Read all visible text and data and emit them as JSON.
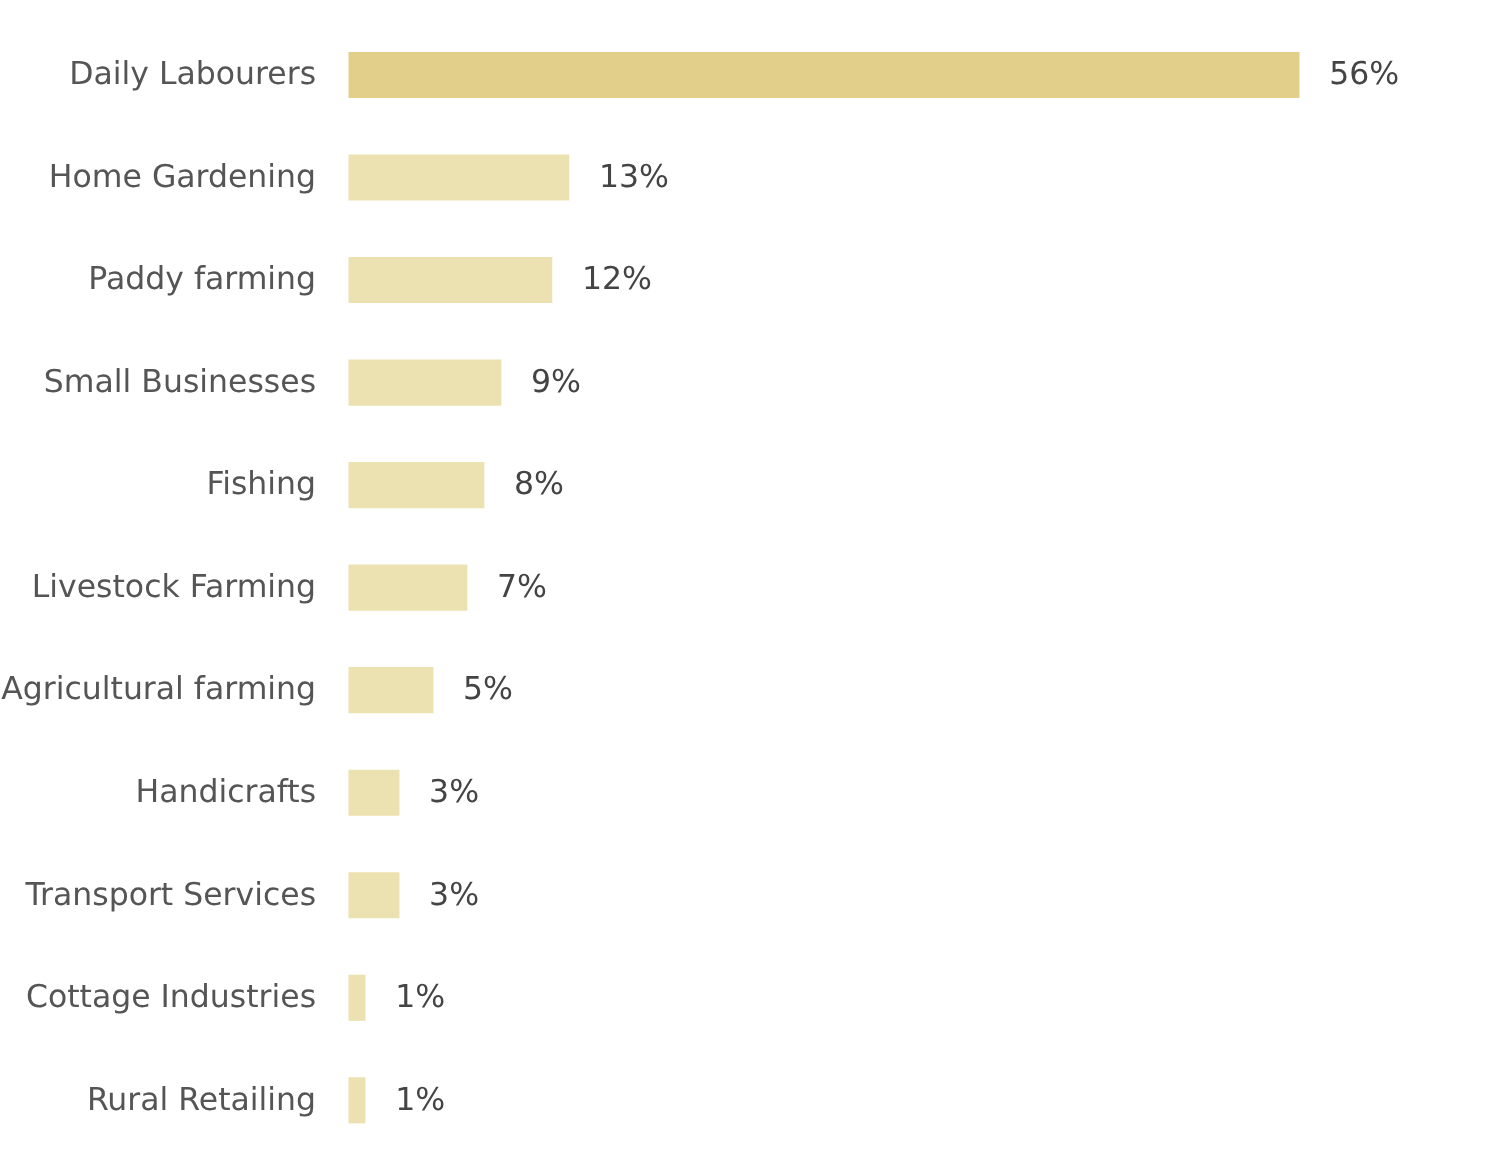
{
  "chart_data": {
    "type": "bar",
    "orientation": "horizontal",
    "categories": [
      "Daily Labourers",
      "Home Gardening",
      "Paddy farming",
      "Small Businesses",
      "Fishing",
      "Livestock Farming",
      "Agricultural farming",
      "Handicrafts",
      "Transport Services",
      "Cottage Industries",
      "Rural Retailing"
    ],
    "values": [
      56,
      13,
      12,
      9,
      8,
      7,
      5,
      3,
      3,
      1,
      1
    ],
    "colors": [
      "#e2d08a",
      "#ece1b0",
      "#ece1b0",
      "#ece1b0",
      "#ece1b0",
      "#ece1b0",
      "#ece1b0",
      "#ece1b0",
      "#ece1b0",
      "#ece1b0",
      "#ece1b0"
    ],
    "value_labels": [
      "56%",
      "13%",
      "12%",
      "9%",
      "8%",
      "7%",
      "5%",
      "3%",
      "3%",
      "1%",
      "1%"
    ],
    "legend": false
  }
}
